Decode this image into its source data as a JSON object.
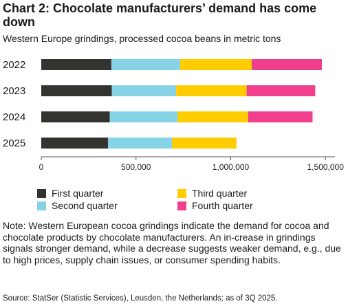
{
  "title": "Chart 2: Chocolate manufacturers’ demand has come down",
  "subtitle": "Western Europe grindings, processed cocoa beans in metric tons",
  "note": "Note: Western European cocoa grindings indicate the demand for cocoa and chocolate products by chocolate manufacturers. An in-crease in grindings signals stronger demand, while a decrease suggests weaker demand, e.g., due to high prices, supply chain issues, or consumer spending habits.",
  "source": "Source: StatSer (Statistic Services), Leusden, the Netherlands; as of 3Q 2025.",
  "chart_data": {
    "type": "bar",
    "orientation": "horizontal",
    "stacked": true,
    "categories": [
      "2022",
      "2023",
      "2024",
      "2025"
    ],
    "series": [
      {
        "name": "First quarter",
        "color": "#333330",
        "values": [
          370000,
          372000,
          362000,
          352000
        ]
      },
      {
        "name": "Second quarter",
        "color": "#87d3e6",
        "values": [
          363000,
          340000,
          358000,
          338000
        ]
      },
      {
        "name": "Third quarter",
        "color": "#ffcc00",
        "values": [
          378000,
          372000,
          372000,
          340000
        ]
      },
      {
        "name": "Fourth quarter",
        "color": "#f03f8c",
        "values": [
          370000,
          362000,
          340000,
          0
        ]
      }
    ],
    "xlim": [
      0,
      1550000
    ],
    "xticks": [
      0,
      500000,
      1000000,
      1500000
    ],
    "xtick_labels": [
      "0",
      "500,000",
      "1,000,000",
      "1,500,000"
    ],
    "grid": false,
    "legend_position": "bottom"
  }
}
